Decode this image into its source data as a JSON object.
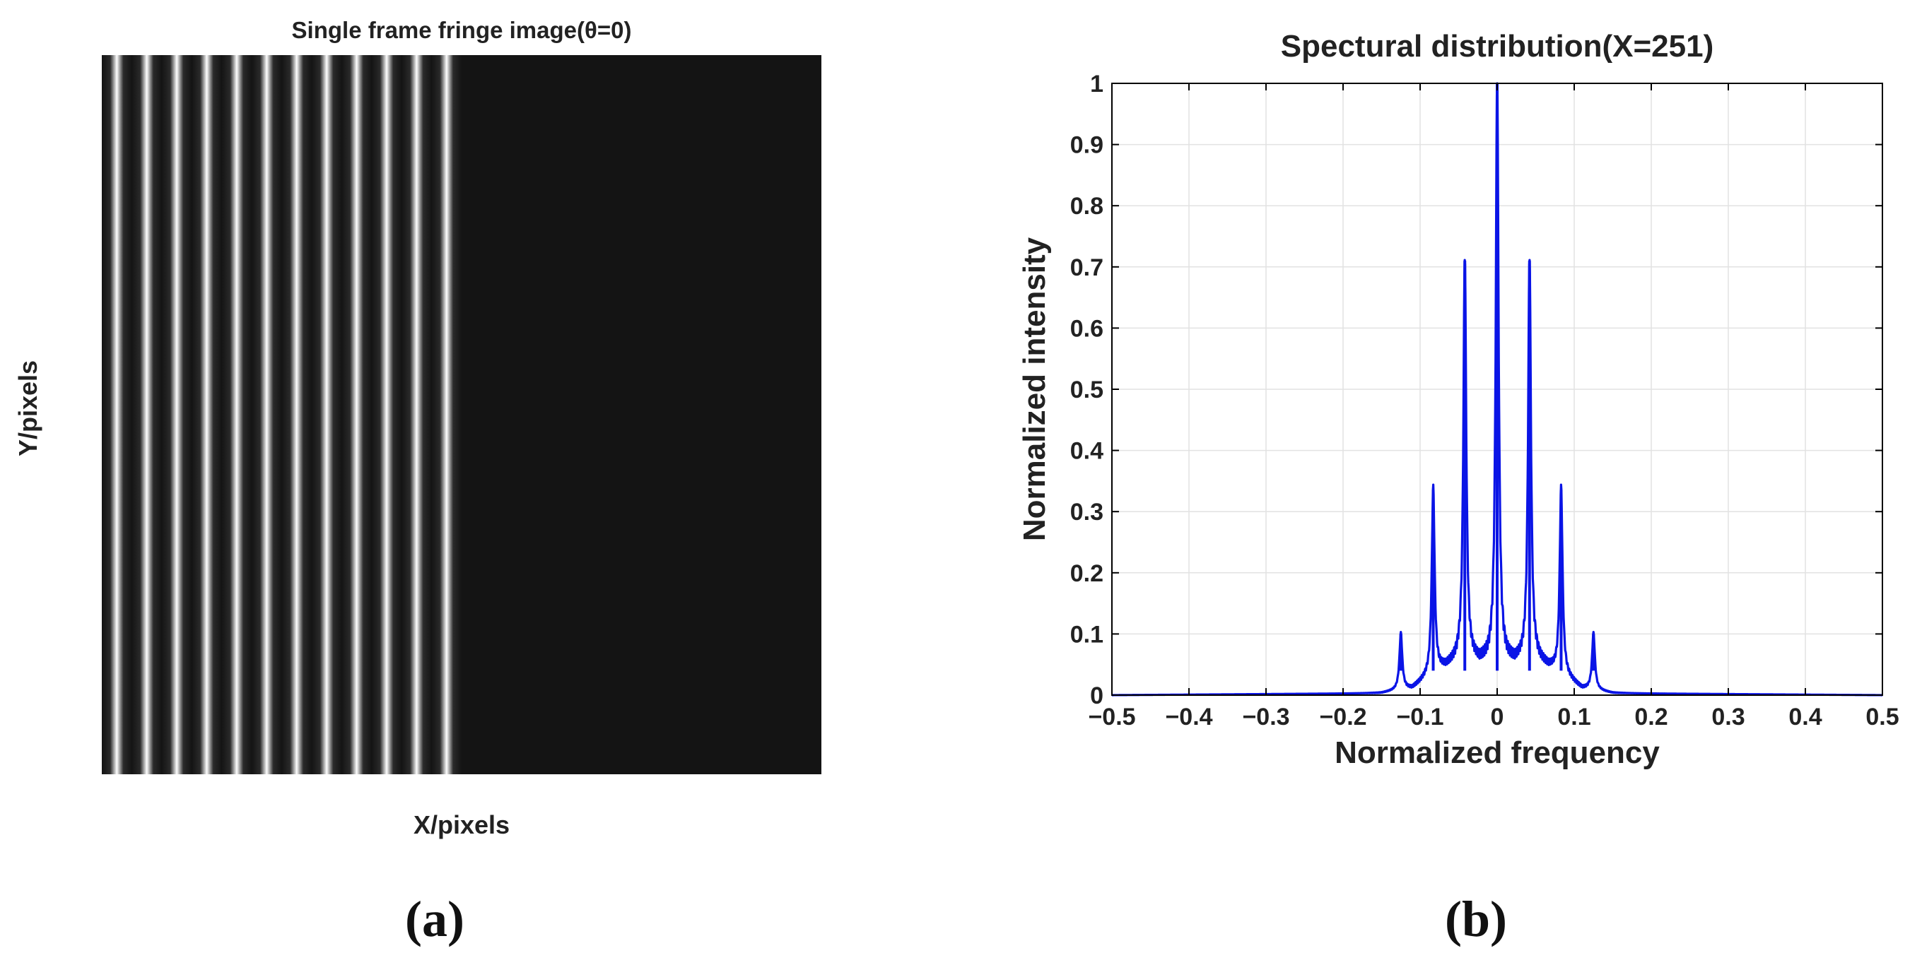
{
  "panel_a": {
    "title": "Single frame fringe image(θ=0)",
    "xlabel": "X/pixels",
    "ylabel": "Y/pixels",
    "caption": "(a)"
  },
  "panel_b": {
    "caption": "(b)"
  },
  "colors": {
    "background": "#ffffff",
    "image_dark": "#141414",
    "fringe_bright": "#ffffff",
    "line": "#0a14e6",
    "grid": "#e2e2e2",
    "axis": "#000000"
  },
  "chart_data": [
    {
      "type": "heatmap",
      "title": "Single frame fringe image(θ=0)",
      "xlabel": "X/pixels",
      "ylabel": "Y/pixels",
      "colormap": "gray",
      "fringe_orientation": "vertical",
      "bright_fringe_count": 12,
      "fringe_region_fraction_of_width": 0.5,
      "grid": false
    },
    {
      "type": "line",
      "title": "Spectural distribution(X=251)",
      "xlabel": "Normalized frequency",
      "ylabel": "Normalized intensity",
      "xlim": [
        -0.5,
        0.5
      ],
      "ylim": [
        0,
        1
      ],
      "xticks": [
        -0.5,
        -0.4,
        -0.3,
        -0.2,
        -0.1,
        0,
        0.1,
        0.2,
        0.3,
        0.4,
        0.5
      ],
      "xtick_labels": [
        "−0.5",
        "−0.4",
        "−0.3",
        "−0.2",
        "−0.1",
        "0",
        "0.1",
        "0.2",
        "0.3",
        "0.4",
        "0.5"
      ],
      "yticks": [
        0,
        0.1,
        0.2,
        0.3,
        0.4,
        0.5,
        0.6,
        0.7,
        0.8,
        0.9,
        1
      ],
      "ytick_labels": [
        "0",
        "0.1",
        "0.2",
        "0.3",
        "0.4",
        "0.5",
        "0.6",
        "0.7",
        "0.8",
        "0.9",
        "1"
      ],
      "grid": true,
      "series": [
        {
          "color": "#0a14e6",
          "peaks": [
            {
              "x": -0.125,
              "y": 0.1
            },
            {
              "x": -0.083,
              "y": 0.335
            },
            {
              "x": -0.042,
              "y": 0.71
            },
            {
              "x": 0.0,
              "y": 1.0
            },
            {
              "x": 0.042,
              "y": 0.71
            },
            {
              "x": 0.083,
              "y": 0.335
            },
            {
              "x": 0.125,
              "y": 0.1
            }
          ],
          "baseline": [
            {
              "x": -0.5,
              "y": 0.0
            },
            {
              "x": -0.15,
              "y": 0.003
            },
            {
              "x": -0.11,
              "y": 0.01
            },
            {
              "x": -0.09,
              "y": 0.025
            },
            {
              "x": -0.07,
              "y": 0.04
            },
            {
              "x": -0.05,
              "y": 0.05
            },
            {
              "x": -0.02,
              "y": 0.045
            },
            {
              "x": 0.0,
              "y": 0.04
            },
            {
              "x": 0.02,
              "y": 0.045
            },
            {
              "x": 0.05,
              "y": 0.05
            },
            {
              "x": 0.07,
              "y": 0.04
            },
            {
              "x": 0.09,
              "y": 0.025
            },
            {
              "x": 0.11,
              "y": 0.01
            },
            {
              "x": 0.15,
              "y": 0.003
            },
            {
              "x": 0.5,
              "y": 0.0
            }
          ]
        }
      ]
    }
  ]
}
